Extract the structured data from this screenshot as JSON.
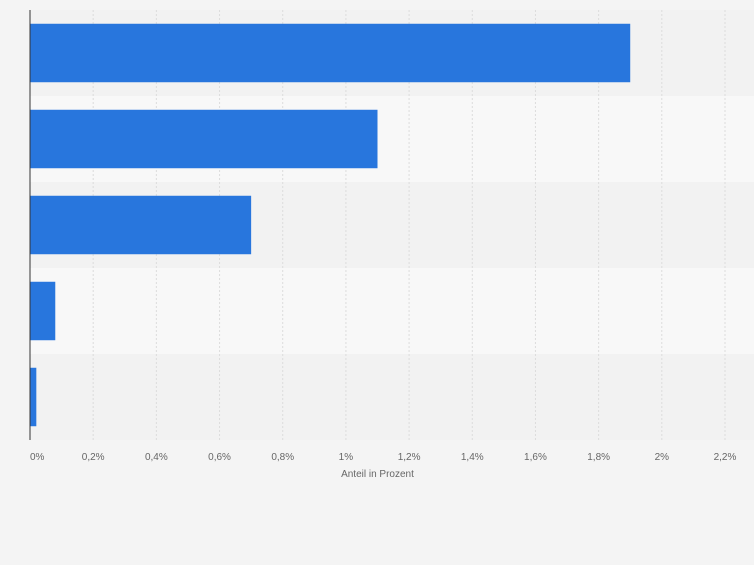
{
  "chart_data": {
    "type": "bar",
    "orientation": "horizontal",
    "categories": [
      "",
      "",
      "",
      "",
      ""
    ],
    "values": [
      1.9,
      1.1,
      0.7,
      0.08,
      0.02
    ],
    "xlim": [
      0,
      2.2
    ],
    "ticks": [
      0,
      0.2,
      0.4,
      0.6,
      0.8,
      1.0,
      1.2,
      1.4,
      1.6,
      1.8,
      2.0,
      2.2
    ],
    "tick_labels": [
      "0%",
      "0,2%",
      "0,4%",
      "0,6%",
      "0,8%",
      "1%",
      "1,2%",
      "1,4%",
      "1,6%",
      "1,8%",
      "2%",
      "2,2%"
    ],
    "xlabel": "Anteil in Prozent",
    "ylabel": "",
    "title": "",
    "grid": true,
    "legend": "none",
    "colors": {
      "bar": "#2876dd",
      "band_odd": "#f2f2f2",
      "band_even": "#f8f8f8",
      "grid": "#dcdcdc",
      "axis": "#333333",
      "tick_text": "#666666"
    }
  }
}
